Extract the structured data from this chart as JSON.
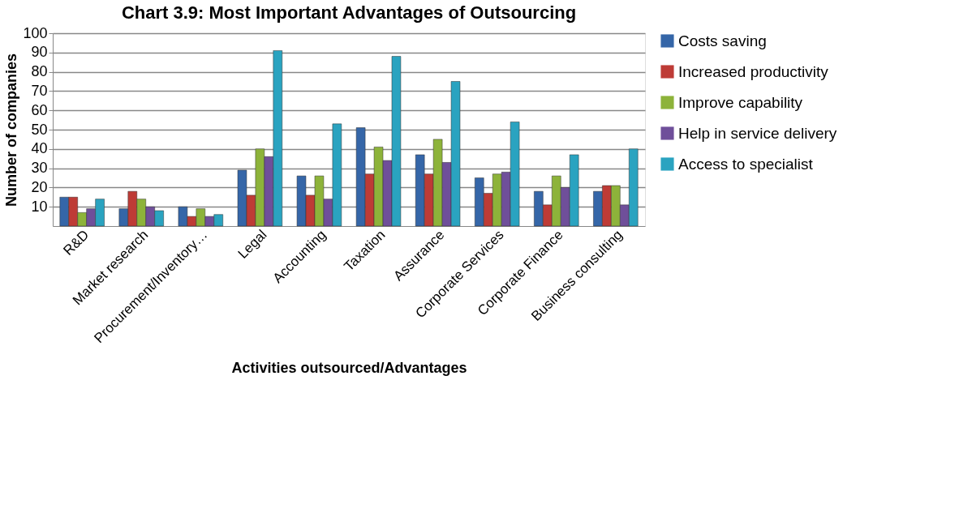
{
  "chart_data": {
    "type": "bar",
    "title": "Chart 3.9: Most Important Advantages of Outsourcing",
    "xlabel": "Activities outsourced/Advantages",
    "ylabel": "Number of companies",
    "categories": [
      "R&D",
      "Market research",
      "Procurement/Inventory…",
      "Legal",
      "Accounting",
      "Taxation",
      "Assurance",
      "Corporate Services",
      "Corporate Finance",
      "Business consulting"
    ],
    "series": [
      {
        "name": "Costs saving",
        "color": "#3566a8",
        "values": [
          15,
          9,
          10,
          29,
          26,
          51,
          37,
          25,
          18,
          18
        ]
      },
      {
        "name": "Increased productivity",
        "color": "#be3b36",
        "values": [
          15,
          18,
          5,
          16,
          16,
          27,
          27,
          17,
          11,
          21
        ]
      },
      {
        "name": "Improve capability",
        "color": "#8db33a",
        "values": [
          7,
          14,
          9,
          40,
          26,
          41,
          45,
          27,
          26,
          21
        ]
      },
      {
        "name": "Help in service delivery",
        "color": "#6f4f9a",
        "values": [
          9,
          10,
          5,
          36,
          14,
          34,
          33,
          28,
          20,
          11
        ]
      },
      {
        "name": "Access to specialist",
        "color": "#2aa3c0",
        "values": [
          14,
          8,
          6,
          91,
          53,
          88,
          75,
          54,
          37,
          40
        ]
      }
    ],
    "ylim": [
      0,
      100
    ],
    "yticks": [
      10,
      20,
      30,
      40,
      50,
      60,
      70,
      80,
      90,
      100
    ],
    "grid": "y",
    "legend": "right"
  }
}
